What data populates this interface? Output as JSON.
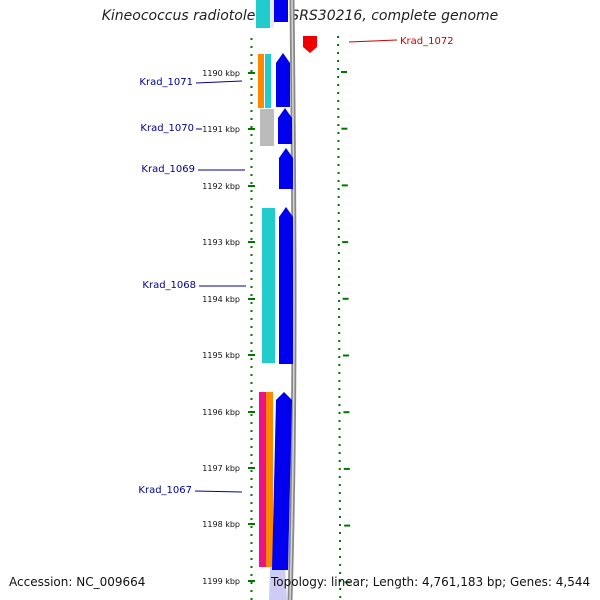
{
  "title": "Kineococcus radiotolerans SRS30216, complete genome",
  "accession": "Accession: NC_009664",
  "summary": "Topology: linear; Length: 4,761,183 bp; Genes: 4,544",
  "colors": {
    "forward_gene": "#0000ee",
    "reverse_gene": "#ee0000",
    "forward_label": "#000099",
    "reverse_label": "#cc0000",
    "ticks": "#007700",
    "backbone": "#888888",
    "teal": "#22cccc",
    "orange": "#ff8800",
    "grey": "#bbbbbb",
    "magenta": "#ee1188"
  },
  "ruler": {
    "labels": [
      "1190 kbp",
      "1191 kbp",
      "1192 kbp",
      "1193 kbp",
      "1194 kbp",
      "1195 kbp",
      "1196 kbp",
      "1197 kbp",
      "1198 kbp",
      "1199 kbp"
    ]
  },
  "genes": [
    {
      "name": "Krad_1072",
      "strand": "reverse"
    },
    {
      "name": "Krad_1071",
      "strand": "forward"
    },
    {
      "name": "Krad_1070",
      "strand": "forward"
    },
    {
      "name": "Krad_1069",
      "strand": "forward"
    },
    {
      "name": "Krad_1068",
      "strand": "forward"
    },
    {
      "name": "Krad_1067",
      "strand": "forward"
    }
  ]
}
